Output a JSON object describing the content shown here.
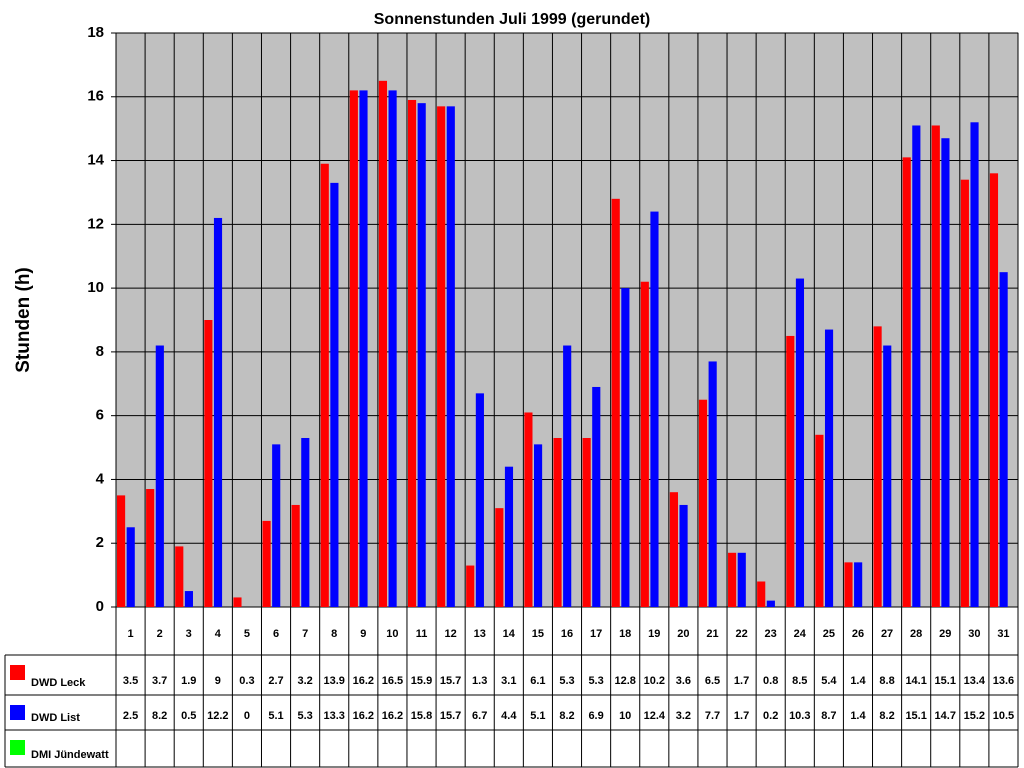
{
  "chart_data": {
    "type": "bar",
    "title": "Sonnenstunden Juli 1999 (gerundet)",
    "y_label": "Stunden (h)",
    "categories": [
      "1",
      "2",
      "3",
      "4",
      "5",
      "6",
      "7",
      "8",
      "9",
      "10",
      "11",
      "12",
      "13",
      "14",
      "15",
      "16",
      "17",
      "18",
      "19",
      "20",
      "21",
      "22",
      "23",
      "24",
      "25",
      "26",
      "27",
      "28",
      "29",
      "30",
      "31"
    ],
    "series": [
      {
        "name": "DWD Leck",
        "color": "#ff0000",
        "values": [
          3.5,
          3.7,
          1.9,
          9,
          0.3,
          2.7,
          3.2,
          13.9,
          16.2,
          16.5,
          15.9,
          15.7,
          1.3,
          3.1,
          6.1,
          5.3,
          5.3,
          12.8,
          10.2,
          3.6,
          6.5,
          1.7,
          0.8,
          8.5,
          5.4,
          1.4,
          8.8,
          14.1,
          15.1,
          13.4,
          13.6
        ]
      },
      {
        "name": "DWD List",
        "color": "#0000ff",
        "values": [
          2.5,
          8.2,
          0.5,
          12.2,
          0,
          5.1,
          5.3,
          13.3,
          16.2,
          16.2,
          15.8,
          15.7,
          6.7,
          4.4,
          5.1,
          8.2,
          6.9,
          10,
          12.4,
          3.2,
          7.7,
          1.7,
          0.2,
          10.3,
          8.7,
          1.4,
          8.2,
          15.1,
          14.7,
          15.2,
          10.5
        ]
      },
      {
        "name": "DMI Jündewatt",
        "color": "#00ff00",
        "values": [
          null,
          null,
          null,
          null,
          null,
          null,
          null,
          null,
          null,
          null,
          null,
          null,
          null,
          null,
          null,
          null,
          null,
          null,
          null,
          null,
          null,
          null,
          null,
          null,
          null,
          null,
          null,
          null,
          null,
          null,
          null
        ]
      }
    ],
    "ylim": [
      0,
      18
    ],
    "yticks": [
      0,
      2,
      4,
      6,
      8,
      10,
      12,
      14,
      16,
      18
    ],
    "grid": true,
    "plot_background": "#c0c0c0",
    "data_table": true
  }
}
